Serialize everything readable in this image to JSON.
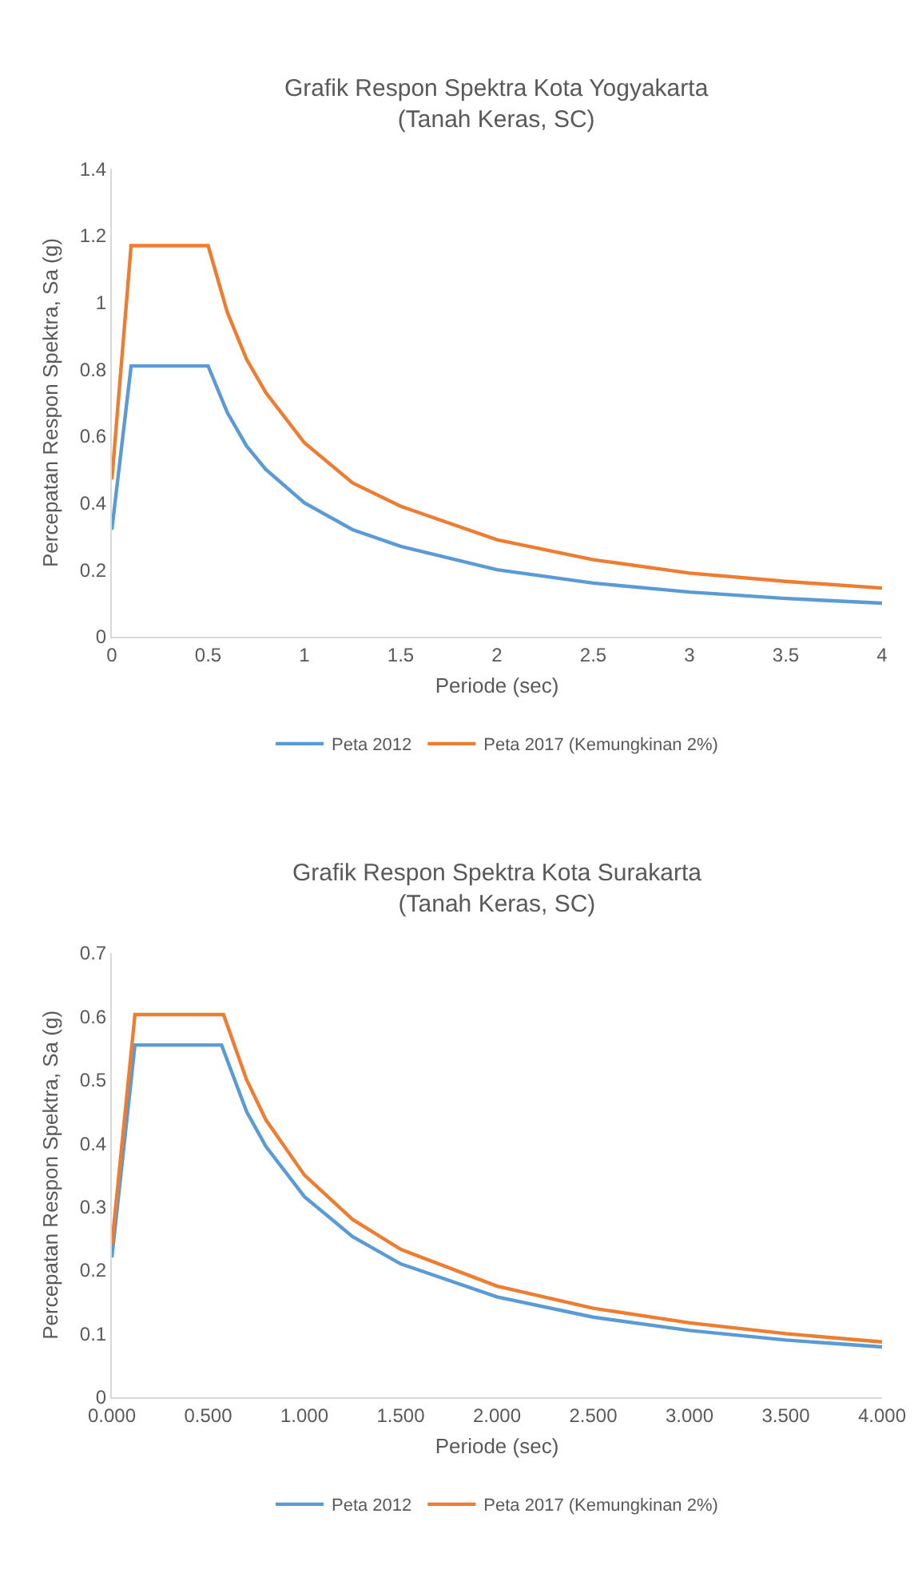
{
  "chart_data": [
    {
      "type": "line",
      "title": "Grafik Respon Spektra Kota Yogyakarta\n(Tanah Keras, SC)",
      "xlabel": "Periode (sec)",
      "ylabel": "Percepatan Respon Spektra, Sa (g)",
      "xlim": [
        0,
        4
      ],
      "xticks": [
        0,
        0.5,
        1,
        1.5,
        2,
        2.5,
        3,
        3.5,
        4
      ],
      "ylim": [
        0,
        1.4
      ],
      "yticks": [
        0,
        0.2,
        0.4,
        0.6,
        0.8,
        1,
        1.2,
        1.4
      ],
      "grid": false,
      "legend": "bottom",
      "marker": "none",
      "line_style": "solid",
      "series": [
        {
          "name": "Peta 2012",
          "color": "#5b9bd5",
          "x": [
            0,
            0.1,
            0.5,
            0.6,
            0.7,
            0.8,
            1,
            1.25,
            1.5,
            2,
            2.5,
            3,
            3.5,
            4
          ],
          "values": [
            0.32,
            0.81,
            0.81,
            0.67,
            0.57,
            0.5,
            0.4,
            0.32,
            0.27,
            0.2,
            0.16,
            0.133,
            0.114,
            0.1
          ]
        },
        {
          "name": "Peta 2017 (Kemungkinan 2%)",
          "color": "#ed7d31",
          "x": [
            0,
            0.1,
            0.5,
            0.6,
            0.7,
            0.8,
            1,
            1.25,
            1.5,
            2,
            2.5,
            3,
            3.5,
            4
          ],
          "values": [
            0.47,
            1.17,
            1.17,
            0.97,
            0.83,
            0.73,
            0.58,
            0.46,
            0.39,
            0.29,
            0.23,
            0.19,
            0.165,
            0.145
          ]
        }
      ]
    },
    {
      "type": "line",
      "title": "Grafik Respon Spektra Kota Surakarta\n(Tanah Keras, SC)",
      "xlabel": "Periode (sec)",
      "ylabel": "Percepatan Respon Spektra, Sa (g)",
      "xlim": [
        0,
        4
      ],
      "xticks": [
        {
          "value": 0,
          "label": "0.000"
        },
        {
          "value": 0.5,
          "label": "0.500"
        },
        {
          "value": 1,
          "label": "1.000"
        },
        {
          "value": 1.5,
          "label": "1.500"
        },
        {
          "value": 2,
          "label": "2.000"
        },
        {
          "value": 2.5,
          "label": "2.500"
        },
        {
          "value": 3,
          "label": "3.000"
        },
        {
          "value": 3.5,
          "label": "3.500"
        },
        {
          "value": 4,
          "label": "4.000"
        }
      ],
      "ylim": [
        0,
        0.7
      ],
      "yticks": [
        0,
        0.1,
        0.2,
        0.3,
        0.4,
        0.5,
        0.6,
        0.7
      ],
      "grid": false,
      "legend": "bottom",
      "marker": "none",
      "line_style": "solid",
      "series": [
        {
          "name": "Peta 2012",
          "color": "#5b9bd5",
          "x": [
            0,
            0.12,
            0.57,
            0.7,
            0.8,
            1,
            1.25,
            1.5,
            2,
            2.5,
            3,
            3.5,
            4
          ],
          "values": [
            0.22,
            0.555,
            0.555,
            0.45,
            0.395,
            0.316,
            0.253,
            0.21,
            0.158,
            0.126,
            0.105,
            0.09,
            0.079
          ]
        },
        {
          "name": "Peta 2017 (Kemungkinan 2%)",
          "color": "#ed7d31",
          "x": [
            0,
            0.12,
            0.58,
            0.7,
            0.8,
            1,
            1.25,
            1.5,
            2,
            2.5,
            3,
            3.5,
            4
          ],
          "values": [
            0.24,
            0.603,
            0.603,
            0.5,
            0.437,
            0.35,
            0.28,
            0.233,
            0.175,
            0.14,
            0.117,
            0.1,
            0.087
          ]
        }
      ]
    }
  ]
}
